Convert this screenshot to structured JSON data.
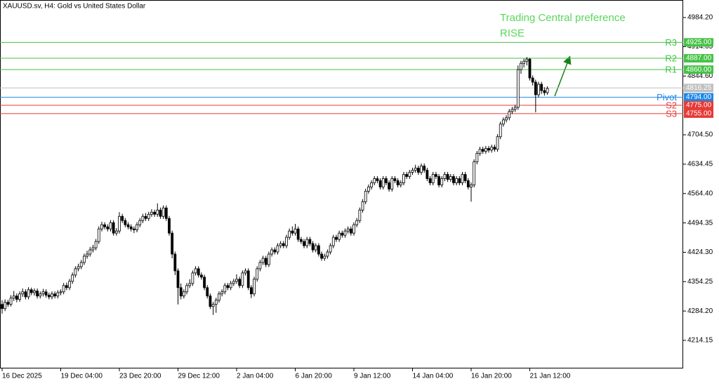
{
  "chart_data": {
    "type": "candlestick",
    "title": "XAUUSD.sv, H4:  Gold vs United States Dollar",
    "annotation": [
      "Trading Central preference",
      "RISE"
    ],
    "annotation_color": "#5cd65c",
    "ylim": [
      4147.2,
      5026.0
    ],
    "yticks": [
      {
        "value": 4984.2,
        "label": "4984.20"
      },
      {
        "value": 4914.65,
        "label": "4914.65"
      },
      {
        "value": 4844.6,
        "label": "4844.60"
      },
      {
        "value": 4704.5,
        "label": "4704.50"
      },
      {
        "value": 4634.45,
        "label": "4634.45"
      },
      {
        "value": 4564.4,
        "label": "4564.40"
      },
      {
        "value": 4494.35,
        "label": "4494.35"
      },
      {
        "value": 4424.3,
        "label": "4424.30"
      },
      {
        "value": 4354.25,
        "label": "4354.25"
      },
      {
        "value": 4284.2,
        "label": "4284.20"
      },
      {
        "value": 4214.15,
        "label": "4214.15"
      }
    ],
    "categories": [
      "16 Dec 2025",
      null,
      null,
      null,
      null,
      null,
      null,
      null,
      null,
      null,
      null,
      null,
      null,
      null,
      null,
      null,
      null,
      null,
      null,
      null,
      "19 Dec 04:00",
      null,
      null,
      null,
      null,
      null,
      null,
      null,
      null,
      null,
      null,
      null,
      null,
      null,
      null,
      null,
      null,
      null,
      null,
      null,
      "23 Dec 20:00",
      null,
      null,
      null,
      null,
      null,
      null,
      null,
      null,
      null,
      null,
      null,
      null,
      null,
      null,
      null,
      null,
      null,
      null,
      null,
      "29 Dec 12:00",
      null,
      null,
      null,
      null,
      null,
      null,
      null,
      null,
      null,
      null,
      null,
      null,
      null,
      null,
      null,
      null,
      null,
      null,
      null,
      "2 Jan 04:00",
      null,
      null,
      null,
      null,
      null,
      null,
      null,
      null,
      null,
      null,
      null,
      null,
      null,
      null,
      null,
      null,
      null,
      null,
      null,
      "6 Jan 20:00",
      null,
      null,
      null,
      null,
      null,
      null,
      null,
      null,
      null,
      null,
      null,
      null,
      null,
      null,
      null,
      null,
      null,
      null,
      null,
      "9 Jan 12:00",
      null,
      null,
      null,
      null,
      null,
      null,
      null,
      null,
      null,
      null,
      null,
      null,
      null,
      null,
      null,
      null,
      null,
      null,
      null,
      "14 Jan 04:00",
      null,
      null,
      null,
      null,
      null,
      null,
      null,
      null,
      null,
      null,
      null,
      null,
      null,
      null,
      null,
      null,
      null,
      null,
      null,
      "16 Jan 20:00",
      null,
      null,
      null,
      null,
      null,
      null,
      null,
      null,
      null,
      null,
      null,
      null,
      null,
      null,
      null,
      null,
      null,
      null,
      null,
      "21 Jan 12:00",
      null,
      null,
      null,
      null,
      null,
      null
    ],
    "open": [
      4300,
      4290,
      4305,
      4300,
      4315,
      4320,
      4312,
      4325,
      4330,
      4318,
      4335,
      4328,
      4332,
      4320,
      4325,
      4330,
      4322,
      4318,
      4325,
      4320,
      4328,
      4330,
      4345,
      4340,
      4355,
      4370,
      4385,
      4390,
      4400,
      4415,
      4420,
      4430,
      4435,
      4450,
      4480,
      4490,
      4485,
      4480,
      4495,
      4470,
      4475,
      4510,
      4500,
      4490,
      4485,
      4480,
      4478,
      4490,
      4500,
      4510,
      4505,
      4515,
      4520,
      4515,
      4525,
      4510,
      4530,
      4505,
      4470,
      4420,
      4380,
      4340,
      4320,
      4330,
      4345,
      4350,
      4375,
      4385,
      4370,
      4365,
      4340,
      4320,
      4295,
      4300,
      4310,
      4325,
      4330,
      4345,
      4340,
      4350,
      4355,
      4360,
      4345,
      4375,
      4380,
      4340,
      4325,
      4360,
      4385,
      4400,
      4410,
      4395,
      4420,
      4430,
      4425,
      4440,
      4445,
      4440,
      4460,
      4475,
      4470,
      4480,
      4455,
      4450,
      4440,
      4455,
      4445,
      4430,
      4440,
      4420,
      4410,
      4415,
      4425,
      4440,
      4460,
      4455,
      4470,
      4465,
      4475,
      4480,
      4470,
      4490,
      4500,
      4525,
      4545,
      4570,
      4580,
      4590,
      4600,
      4595,
      4580,
      4600,
      4590,
      4575,
      4600,
      4595,
      4585,
      4590,
      4610,
      4605,
      4615,
      4620,
      4625,
      4615,
      4630,
      4620,
      4600,
      4590,
      4610,
      4605,
      4585,
      4600,
      4610,
      4598,
      4605,
      4590,
      4600,
      4590,
      4610,
      4595,
      4580,
      4585,
      4640,
      4660,
      4670,
      4665,
      4672,
      4668,
      4675,
      4670,
      4700,
      4730,
      4740,
      4745,
      4760,
      4765,
      4770,
      4860,
      4875,
      4880,
      4885,
      4840,
      4830,
      4800,
      4825,
      4810,
      4805
    ],
    "high": [
      4310,
      4312,
      4311,
      4322,
      4332,
      4326,
      4331,
      4338,
      4336,
      4341,
      4340,
      4338,
      4338,
      4331,
      4337,
      4336,
      4328,
      4331,
      4331,
      4334,
      4336,
      4351,
      4352,
      4361,
      4376,
      4391,
      4397,
      4406,
      4421,
      4428,
      4437,
      4442,
      4456,
      4486,
      4497,
      4496,
      4491,
      4501,
      4501,
      4482,
      4520,
      4516,
      4506,
      4496,
      4491,
      4486,
      4496,
      4506,
      4516,
      4518,
      4521,
      4527,
      4526,
      4541,
      4531,
      4536,
      4536,
      4511,
      4476,
      4426,
      4386,
      4350,
      4336,
      4351,
      4360,
      4381,
      4391,
      4391,
      4376,
      4371,
      4346,
      4326,
      4306,
      4316,
      4331,
      4336,
      4351,
      4351,
      4356,
      4361,
      4372,
      4366,
      4381,
      4386,
      4386,
      4346,
      4366,
      4391,
      4406,
      4416,
      4416,
      4426,
      4436,
      4436,
      4446,
      4451,
      4451,
      4466,
      4481,
      4486,
      4492,
      4486,
      4461,
      4456,
      4461,
      4461,
      4451,
      4446,
      4446,
      4426,
      4421,
      4431,
      4446,
      4466,
      4466,
      4476,
      4476,
      4481,
      4486,
      4486,
      4496,
      4506,
      4531,
      4551,
      4576,
      4586,
      4596,
      4606,
      4606,
      4601,
      4606,
      4606,
      4596,
      4606,
      4606,
      4601,
      4596,
      4616,
      4616,
      4621,
      4626,
      4633,
      4631,
      4636,
      4636,
      4626,
      4606,
      4616,
      4616,
      4611,
      4606,
      4616,
      4616,
      4611,
      4611,
      4606,
      4606,
      4616,
      4616,
      4601,
      4591,
      4646,
      4666,
      4676,
      4676,
      4678,
      4678,
      4681,
      4681,
      4706,
      4736,
      4746,
      4751,
      4766,
      4771,
      4776,
      4870,
      4881,
      4886,
      4890,
      4888,
      4846,
      4836,
      4831,
      4831,
      4818,
      4820
    ],
    "low": [
      4278,
      4284,
      4294,
      4295,
      4308,
      4305,
      4306,
      4318,
      4312,
      4312,
      4322,
      4321,
      4314,
      4314,
      4319,
      4316,
      4312,
      4312,
      4314,
      4314,
      4322,
      4324,
      4334,
      4334,
      4349,
      4364,
      4379,
      4384,
      4394,
      4409,
      4414,
      4424,
      4429,
      4444,
      4474,
      4479,
      4474,
      4474,
      4464,
      4464,
      4469,
      4494,
      4484,
      4479,
      4474,
      4470,
      4472,
      4484,
      4494,
      4499,
      4499,
      4509,
      4509,
      4509,
      4504,
      4504,
      4499,
      4464,
      4410,
      4370,
      4300,
      4312,
      4314,
      4324,
      4339,
      4344,
      4369,
      4364,
      4359,
      4334,
      4314,
      4289,
      4275,
      4280,
      4304,
      4319,
      4324,
      4334,
      4334,
      4344,
      4349,
      4339,
      4339,
      4369,
      4334,
      4315,
      4319,
      4354,
      4379,
      4394,
      4389,
      4389,
      4414,
      4419,
      4419,
      4434,
      4434,
      4434,
      4454,
      4464,
      4464,
      4449,
      4444,
      4434,
      4434,
      4439,
      4424,
      4424,
      4414,
      4404,
      4404,
      4409,
      4419,
      4434,
      4449,
      4449,
      4459,
      4459,
      4469,
      4464,
      4464,
      4484,
      4494,
      4519,
      4539,
      4564,
      4574,
      4584,
      4589,
      4574,
      4574,
      4584,
      4569,
      4569,
      4589,
      4579,
      4579,
      4584,
      4599,
      4599,
      4609,
      4614,
      4609,
      4609,
      4614,
      4594,
      4584,
      4584,
      4599,
      4579,
      4579,
      4594,
      4592,
      4592,
      4584,
      4584,
      4584,
      4584,
      4589,
      4574,
      4545,
      4579,
      4634,
      4654,
      4659,
      4659,
      4662,
      4662,
      4664,
      4664,
      4694,
      4724,
      4734,
      4739,
      4754,
      4759,
      4764,
      4850,
      4865,
      4870,
      4834,
      4822,
      4758,
      4794,
      4802,
      4798,
      4800
    ],
    "close": [
      4290,
      4305,
      4300,
      4315,
      4320,
      4312,
      4325,
      4330,
      4318,
      4335,
      4328,
      4332,
      4320,
      4325,
      4330,
      4322,
      4318,
      4325,
      4320,
      4328,
      4330,
      4345,
      4340,
      4355,
      4370,
      4385,
      4390,
      4400,
      4415,
      4420,
      4430,
      4435,
      4450,
      4480,
      4490,
      4485,
      4480,
      4495,
      4470,
      4475,
      4510,
      4500,
      4490,
      4485,
      4480,
      4478,
      4490,
      4500,
      4510,
      4505,
      4515,
      4520,
      4515,
      4525,
      4510,
      4530,
      4505,
      4470,
      4420,
      4380,
      4340,
      4320,
      4330,
      4345,
      4350,
      4375,
      4385,
      4370,
      4365,
      4340,
      4320,
      4295,
      4300,
      4310,
      4325,
      4330,
      4345,
      4340,
      4350,
      4355,
      4360,
      4345,
      4375,
      4380,
      4340,
      4325,
      4360,
      4385,
      4400,
      4410,
      4395,
      4420,
      4430,
      4425,
      4440,
      4445,
      4440,
      4460,
      4475,
      4470,
      4480,
      4455,
      4450,
      4440,
      4455,
      4445,
      4430,
      4440,
      4420,
      4410,
      4415,
      4425,
      4440,
      4460,
      4455,
      4470,
      4465,
      4475,
      4480,
      4470,
      4490,
      4500,
      4525,
      4545,
      4570,
      4580,
      4590,
      4600,
      4595,
      4580,
      4600,
      4590,
      4575,
      4600,
      4595,
      4585,
      4590,
      4610,
      4605,
      4615,
      4620,
      4625,
      4615,
      4630,
      4620,
      4600,
      4590,
      4610,
      4605,
      4585,
      4600,
      4610,
      4598,
      4605,
      4590,
      4600,
      4590,
      4610,
      4595,
      4580,
      4585,
      4640,
      4660,
      4670,
      4665,
      4672,
      4668,
      4675,
      4670,
      4700,
      4730,
      4740,
      4745,
      4760,
      4765,
      4770,
      4860,
      4875,
      4880,
      4885,
      4840,
      4830,
      4800,
      4825,
      4810,
      4805,
      4815
    ],
    "levels": [
      {
        "name": "R3",
        "value": 4925,
        "value_label": "4925.00",
        "color": "#45c245"
      },
      {
        "name": "R2",
        "value": 4887,
        "value_label": "4887.00",
        "color": "#45c245"
      },
      {
        "name": "R1",
        "value": 4860,
        "value_label": "4860.00",
        "color": "#45c245"
      },
      {
        "name": "Pivot",
        "value": 4794,
        "value_label": "4794.00",
        "color": "#1e88e5"
      },
      {
        "name": "S2",
        "value": 4775,
        "value_label": "4775.00",
        "color": "#e53935"
      },
      {
        "name": "S3",
        "value": 4755,
        "value_label": "4755.00",
        "color": "#e53935"
      }
    ],
    "last_price": {
      "value": 4816.25,
      "value_label": "4816.25",
      "color": "#c0c0c0"
    }
  }
}
